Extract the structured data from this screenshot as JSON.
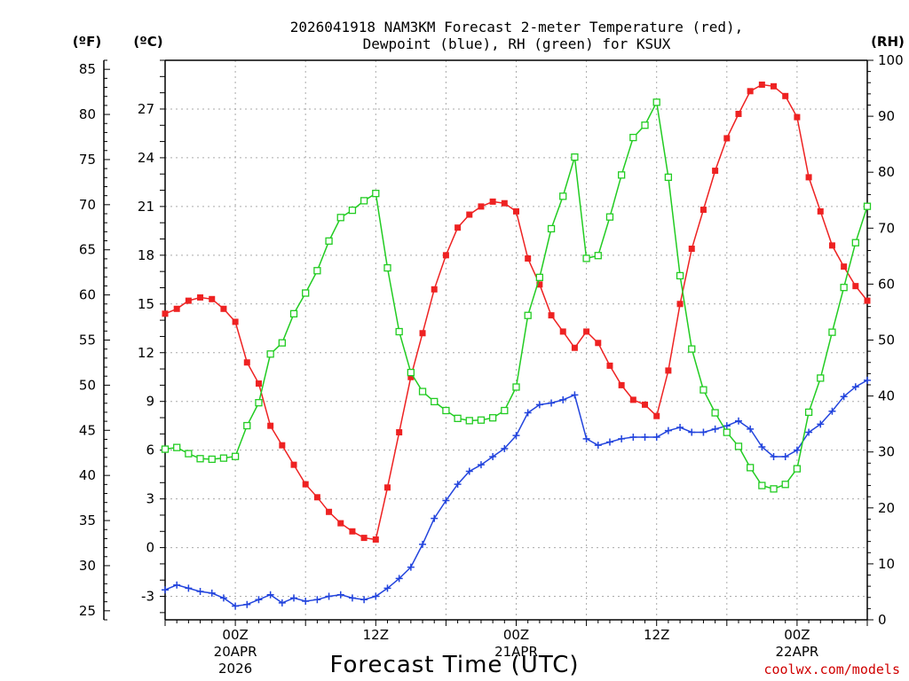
{
  "chart_data": {
    "type": "line",
    "title_line1": "2026041918 NAM3KM Forecast 2-meter Temperature (red),",
    "title_line2": "Dewpoint (blue), RH (green) for KSUX",
    "xlabel": "Forecast Time (UTC)",
    "credit": "coolwx.com/models",
    "units": {
      "fahrenheit": "(ºF)",
      "celsius": "(ºC)",
      "rh": "(RH)"
    },
    "axes": {
      "fahrenheit": {
        "range": [
          24,
          86
        ],
        "ticks": [
          "25",
          "30",
          "35",
          "40",
          "45",
          "50",
          "55",
          "60",
          "65",
          "70",
          "75",
          "80",
          "85"
        ]
      },
      "celsius": {
        "range": [
          -4.444,
          30
        ],
        "ticks": [
          "-3",
          "0",
          "3",
          "6",
          "9",
          "12",
          "15",
          "18",
          "21",
          "24",
          "27"
        ]
      },
      "rh": {
        "range": [
          0,
          100
        ],
        "ticks": [
          "0",
          "10",
          "20",
          "30",
          "40",
          "50",
          "60",
          "70",
          "80",
          "90",
          "100"
        ]
      },
      "x": {
        "range": [
          18,
          78
        ],
        "unit": "forecast hour since 2026-04-19 00Z"
      }
    },
    "x_ticks": [
      {
        "hour": 24,
        "label": "00Z",
        "date": "20APR",
        "year": "2026"
      },
      {
        "hour": 36,
        "label": "12Z",
        "date": "",
        "year": ""
      },
      {
        "hour": 48,
        "label": "00Z",
        "date": "21APR",
        "year": ""
      },
      {
        "hour": 60,
        "label": "12Z",
        "date": "",
        "year": ""
      },
      {
        "hour": 72,
        "label": "00Z",
        "date": "22APR",
        "year": ""
      }
    ],
    "hours": [
      18,
      19,
      20,
      21,
      22,
      23,
      24,
      25,
      26,
      27,
      28,
      29,
      30,
      31,
      32,
      33,
      34,
      35,
      36,
      37,
      38,
      39,
      40,
      41,
      42,
      43,
      44,
      45,
      46,
      47,
      48,
      49,
      50,
      51,
      52,
      53,
      54,
      55,
      56,
      57,
      58,
      59,
      60,
      61,
      62,
      63,
      64,
      65,
      66,
      67,
      68,
      69,
      70,
      71,
      72,
      73,
      74,
      75,
      76,
      77,
      78
    ],
    "series": [
      {
        "name": "2-meter Temperature",
        "unit": "C",
        "color": "#ee2222",
        "marker": "filled-square",
        "values": [
          14.4,
          14.7,
          15.2,
          15.4,
          15.3,
          14.7,
          13.9,
          11.4,
          10.1,
          7.5,
          6.3,
          5.1,
          3.9,
          3.1,
          2.2,
          1.5,
          1.0,
          0.6,
          0.5,
          3.7,
          7.1,
          10.5,
          13.2,
          15.9,
          18.0,
          19.7,
          20.5,
          21.0,
          21.3,
          21.2,
          20.7,
          17.8,
          16.2,
          14.3,
          13.3,
          12.3,
          13.3,
          12.6,
          11.2,
          10.0,
          9.1,
          8.8,
          8.1,
          10.9,
          15.0,
          18.4,
          20.8,
          23.2,
          25.2,
          26.7,
          28.1,
          28.5,
          28.4,
          27.8,
          26.5,
          22.8,
          20.7,
          18.6,
          17.3,
          16.1,
          15.2
        ]
      },
      {
        "name": "Dewpoint",
        "unit": "C",
        "color": "#2244dd",
        "marker": "plus",
        "values": [
          -2.6,
          -2.3,
          -2.5,
          -2.7,
          -2.8,
          -3.1,
          -3.6,
          -3.5,
          -3.2,
          -2.9,
          -3.4,
          -3.1,
          -3.3,
          -3.2,
          -3.0,
          -2.9,
          -3.1,
          -3.2,
          -3.0,
          -2.5,
          -1.9,
          -1.2,
          0.2,
          1.8,
          2.9,
          3.9,
          4.7,
          5.1,
          5.6,
          6.1,
          6.9,
          8.3,
          8.8,
          8.9,
          9.1,
          9.4,
          6.7,
          6.3,
          6.5,
          6.7,
          6.8,
          6.8,
          6.8,
          7.2,
          7.4,
          7.1,
          7.1,
          7.3,
          7.5,
          7.8,
          7.3,
          6.2,
          5.6,
          5.6,
          6.0,
          7.1,
          7.6,
          8.4,
          9.3,
          9.9,
          10.3
        ]
      },
      {
        "name": "RH",
        "unit": "%",
        "color": "#22cc22",
        "marker": "open-square",
        "values": [
          30.5,
          30.8,
          29.7,
          28.8,
          28.7,
          28.9,
          29.2,
          34.7,
          38.8,
          47.5,
          49.5,
          54.7,
          58.4,
          62.4,
          67.7,
          71.9,
          73.2,
          74.9,
          76.2,
          62.9,
          51.5,
          44.2,
          40.8,
          39.0,
          37.4,
          36.0,
          35.6,
          35.7,
          36.1,
          37.4,
          41.6,
          54.4,
          61.2,
          69.9,
          75.7,
          82.7,
          64.6,
          65.1,
          72.0,
          79.5,
          86.2,
          88.4,
          92.5,
          79.1,
          61.5,
          48.4,
          41.1,
          37.0,
          33.5,
          31.0,
          27.2,
          24.0,
          23.4,
          24.2,
          27.0,
          37.1,
          43.2,
          51.4,
          59.4,
          67.4,
          73.9
        ]
      }
    ]
  }
}
